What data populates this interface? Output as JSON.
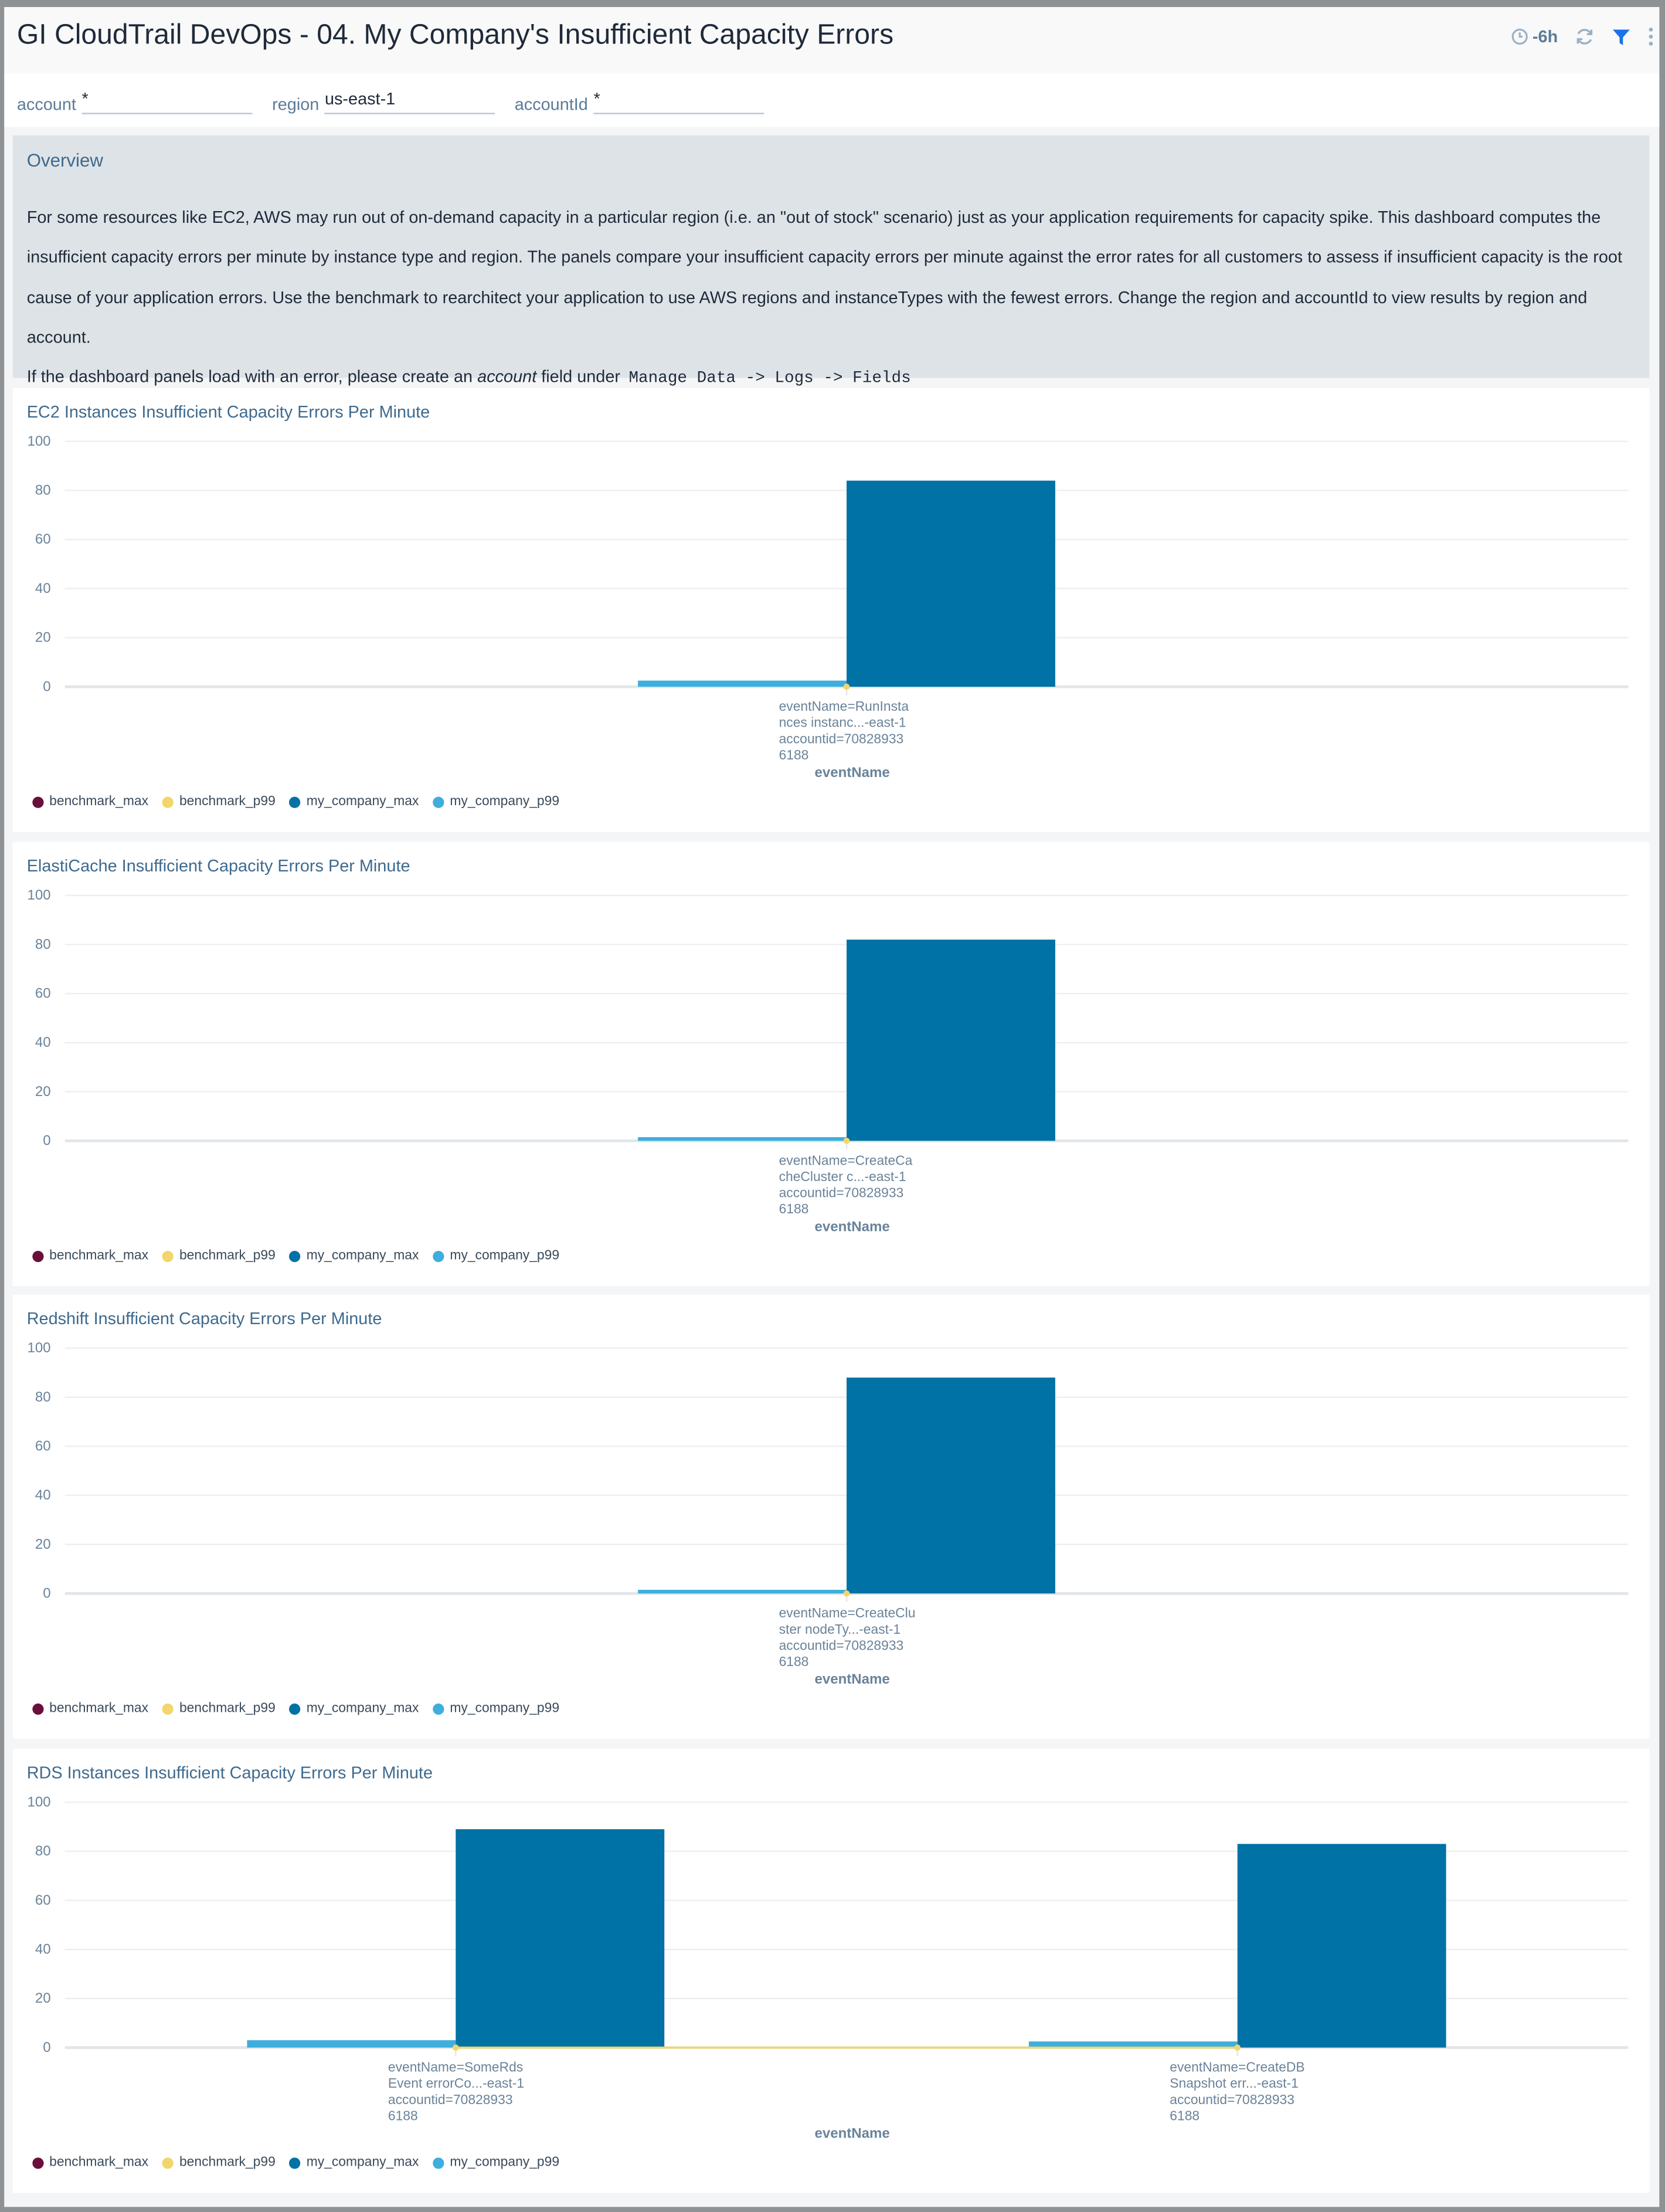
{
  "header": {
    "title": "GI CloudTrail DevOps - 04. My Company's Insufficient Capacity Errors",
    "time_range": "-6h",
    "icons": [
      "clock-icon",
      "refresh-icon",
      "filter-icon",
      "more-vertical-icon"
    ]
  },
  "filters": [
    {
      "label": "account",
      "value": "*"
    },
    {
      "label": "region",
      "value": "us-east-1"
    },
    {
      "label": "accountId",
      "value": "*"
    }
  ],
  "overview": {
    "title": "Overview",
    "paragraph": "For some resources like EC2, AWS may run out of on-demand capacity in a particular region (i.e. an \"out of stock\" scenario) just as your application requirements for capacity spike. This dashboard computes the insufficient capacity errors per minute by instance type and region. The panels compare your insufficient capacity errors per minute against the error rates for all customers to assess if insufficient capacity is the root cause of your application errors. Use the benchmark to rearchitect your application to use AWS regions and instanceTypes with the fewest errors. Change the region and accountId to view results by region and account.",
    "note_prefix": "If the dashboard panels load with an error, please create an",
    "note_emphasis": "account",
    "note_middle": "field under",
    "note_code": "Manage Data -> Logs -> Fields"
  },
  "colors": {
    "benchmark_max": "#6b0f3a",
    "benchmark_p99": "#f2d66b",
    "my_company_max": "#0072a5",
    "my_company_p99": "#3eaedc"
  },
  "chart_data": [
    {
      "type": "bar",
      "title": "EC2 Instances Insufficient Capacity Errors Per Minute",
      "xlabel": "eventName",
      "ylabel": "",
      "ylim": [
        0,
        100
      ],
      "yticks": [
        "0",
        "20",
        "40",
        "60",
        "80",
        "100"
      ],
      "grid": true,
      "legend": "bottom-left",
      "categories": [
        [
          "eventName=RunInsta",
          "nces instanc...-east-1",
          "accountid=70828933",
          "6188"
        ]
      ],
      "series": [
        {
          "name": "benchmark_max",
          "kind": "bar",
          "values": [
            0
          ]
        },
        {
          "name": "benchmark_p99",
          "kind": "line",
          "values": [
            0
          ]
        },
        {
          "name": "my_company_max",
          "kind": "bar",
          "values": [
            84
          ]
        },
        {
          "name": "my_company_p99",
          "kind": "bar",
          "values": [
            2.5
          ]
        }
      ]
    },
    {
      "type": "bar",
      "title": "ElastiCache Insufficient Capacity Errors Per Minute",
      "xlabel": "eventName",
      "ylabel": "",
      "ylim": [
        0,
        100
      ],
      "yticks": [
        "0",
        "20",
        "40",
        "60",
        "80",
        "100"
      ],
      "grid": true,
      "legend": "bottom-left",
      "categories": [
        [
          "eventName=CreateCa",
          "cheCluster c...-east-1",
          "accountid=70828933",
          "6188"
        ]
      ],
      "series": [
        {
          "name": "benchmark_max",
          "kind": "bar",
          "values": [
            0
          ]
        },
        {
          "name": "benchmark_p99",
          "kind": "line",
          "values": [
            0
          ]
        },
        {
          "name": "my_company_max",
          "kind": "bar",
          "values": [
            82
          ]
        },
        {
          "name": "my_company_p99",
          "kind": "bar",
          "values": [
            1.5
          ]
        }
      ]
    },
    {
      "type": "bar",
      "title": "Redshift Insufficient Capacity Errors Per Minute",
      "xlabel": "eventName",
      "ylabel": "",
      "ylim": [
        0,
        100
      ],
      "yticks": [
        "0",
        "20",
        "40",
        "60",
        "80",
        "100"
      ],
      "grid": true,
      "legend": "bottom-left",
      "categories": [
        [
          "eventName=CreateClu",
          "ster nodeTy...-east-1",
          "accountid=70828933",
          "6188"
        ]
      ],
      "series": [
        {
          "name": "benchmark_max",
          "kind": "bar",
          "values": [
            0
          ]
        },
        {
          "name": "benchmark_p99",
          "kind": "line",
          "values": [
            0
          ]
        },
        {
          "name": "my_company_max",
          "kind": "bar",
          "values": [
            88
          ]
        },
        {
          "name": "my_company_p99",
          "kind": "bar",
          "values": [
            1.5
          ]
        }
      ]
    },
    {
      "type": "bar",
      "title": "RDS Instances Insufficient Capacity Errors Per Minute",
      "xlabel": "eventName",
      "ylabel": "",
      "ylim": [
        0,
        100
      ],
      "yticks": [
        "0",
        "20",
        "40",
        "60",
        "80",
        "100"
      ],
      "grid": true,
      "legend": "bottom-left",
      "categories": [
        [
          "eventName=SomeRds",
          "Event errorCo...-east-1",
          "accountid=70828933",
          "6188"
        ],
        [
          "eventName=CreateDB",
          "Snapshot err...-east-1",
          "accountid=70828933",
          "6188"
        ]
      ],
      "series": [
        {
          "name": "benchmark_max",
          "kind": "bar",
          "values": [
            0,
            0
          ]
        },
        {
          "name": "benchmark_p99",
          "kind": "line",
          "values": [
            0,
            0
          ]
        },
        {
          "name": "my_company_max",
          "kind": "bar",
          "values": [
            89,
            83
          ]
        },
        {
          "name": "my_company_p99",
          "kind": "bar",
          "values": [
            3,
            2.5
          ]
        }
      ]
    }
  ]
}
